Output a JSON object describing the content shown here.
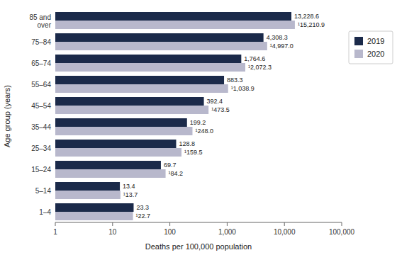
{
  "chart_data": {
    "type": "bar",
    "orientation": "horizontal",
    "log": "x",
    "grid": false,
    "data_labels": true,
    "legend": "right",
    "xlabel": "Deaths per 100,000 population",
    "ylabel": "Age group (years)",
    "categories": [
      "1–4",
      "5–14",
      "15–24",
      "25–34",
      "35–44",
      "45–54",
      "55–64",
      "65–74",
      "75–84",
      "85 and\nover"
    ],
    "series": [
      {
        "name": "2019",
        "color": "#1b2a4a",
        "values": [
          23.3,
          13.4,
          69.7,
          128.8,
          199.2,
          392.4,
          883.3,
          1764.6,
          4308.3,
          13228.6
        ],
        "value_labels": [
          "23.3",
          "13.4",
          "69.7",
          "128.8",
          "199.2",
          "392.4",
          "883.3",
          "1,764.6",
          "4,308.3",
          "13,228.6"
        ]
      },
      {
        "name": "2020",
        "color": "#b8b8cc",
        "values": [
          22.7,
          13.7,
          84.2,
          159.5,
          248.0,
          473.5,
          1038.9,
          2072.3,
          4997.0,
          15210.9
        ],
        "value_labels": [
          "¹22.7",
          "¹13.7",
          "¹84.2",
          "¹159.5",
          "¹248.0",
          "¹473.5",
          "¹1,038.9",
          "¹2,072.3",
          "¹4,997.0",
          "¹15,210.9"
        ]
      }
    ],
    "xlim": [
      1,
      100000
    ],
    "xticks": [
      1,
      10,
      100,
      {
        "value": 1000,
        "label": "1,000"
      },
      {
        "value": 10000,
        "label": "10,000"
      },
      {
        "value": 100000,
        "label": "100,000"
      }
    ]
  }
}
